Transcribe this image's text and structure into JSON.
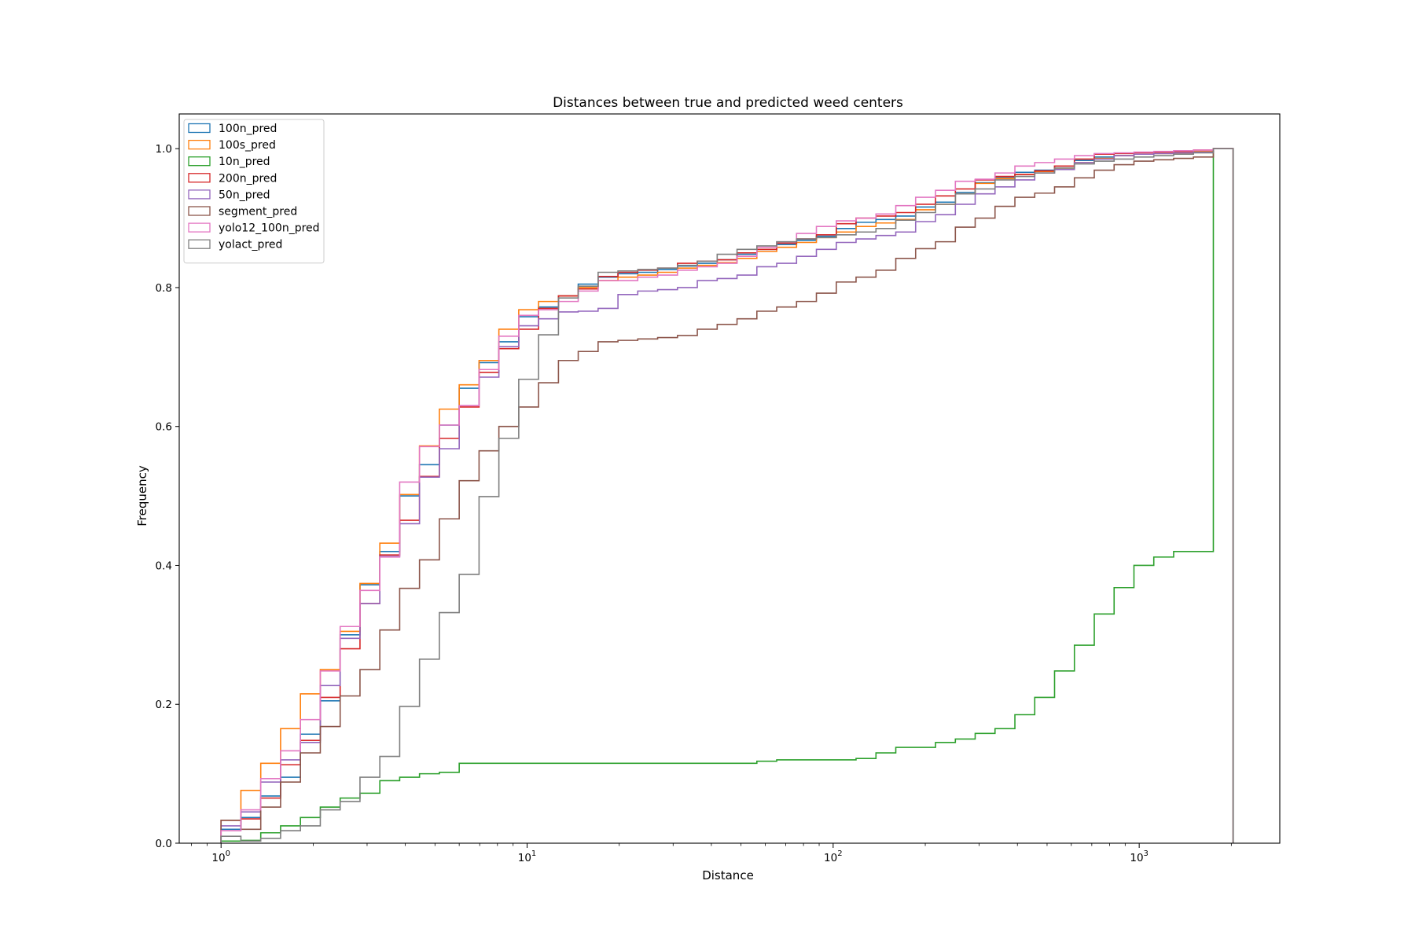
{
  "chart_data": {
    "type": "line",
    "subtype": "cumulative step histogram",
    "title": "Distances between true and predicted weed centers",
    "xlabel": "Distance",
    "ylabel": "Frequency",
    "xscale": "log",
    "xlim": [
      0.73,
      2880
    ],
    "ylim": [
      0,
      1.05
    ],
    "x_ticks": [
      {
        "value": 1,
        "base": "10",
        "exp": "0"
      },
      {
        "value": 10,
        "base": "10",
        "exp": "1"
      },
      {
        "value": 100,
        "base": "10",
        "exp": "2"
      },
      {
        "value": 1000,
        "base": "10",
        "exp": "3"
      }
    ],
    "y_ticks": [
      "0.0",
      "0.2",
      "0.4",
      "0.6",
      "0.8",
      "1.0"
    ],
    "grid": false,
    "legend_position": "upper-left",
    "bin_edges": [
      1.0,
      1.161,
      1.348,
      1.565,
      1.817,
      2.11,
      2.45,
      2.844,
      3.302,
      3.834,
      4.451,
      5.168,
      6.0,
      6.966,
      8.087,
      9.39,
      10.9,
      12.66,
      14.69,
      17.06,
      19.81,
      22.99,
      26.7,
      31.0,
      35.99,
      41.79,
      48.52,
      56.33,
      65.4,
      75.93,
      88.16,
      102.4,
      118.8,
      138.0,
      160.2,
      186.0,
      216.0,
      250.8,
      291.1,
      338.0,
      392.5,
      455.7,
      529.0,
      614.2,
      713.2,
      828.0,
      961.3,
      1116.1,
      1295.9,
      1504.6,
      1747.0,
      2028.3
    ],
    "series": [
      {
        "name": "100n_pred",
        "color": "#1f77b4",
        "values": [
          0.02,
          0.037,
          0.068,
          0.095,
          0.157,
          0.205,
          0.3,
          0.372,
          0.42,
          0.5,
          0.545,
          0.602,
          0.655,
          0.692,
          0.722,
          0.758,
          0.772,
          0.788,
          0.805,
          0.815,
          0.82,
          0.822,
          0.826,
          0.831,
          0.835,
          0.84,
          0.848,
          0.855,
          0.862,
          0.868,
          0.874,
          0.885,
          0.894,
          0.898,
          0.903,
          0.916,
          0.923,
          0.937,
          0.951,
          0.959,
          0.966,
          0.969,
          0.975,
          0.983,
          0.988,
          0.99,
          0.992,
          0.993,
          0.994,
          0.995,
          1.0
        ]
      },
      {
        "name": "100s_pred",
        "color": "#ff7f0e",
        "values": [
          0.033,
          0.076,
          0.115,
          0.165,
          0.215,
          0.25,
          0.305,
          0.374,
          0.432,
          0.502,
          0.572,
          0.625,
          0.66,
          0.695,
          0.74,
          0.768,
          0.78,
          0.788,
          0.8,
          0.81,
          0.815,
          0.818,
          0.822,
          0.828,
          0.832,
          0.836,
          0.842,
          0.852,
          0.858,
          0.865,
          0.872,
          0.88,
          0.888,
          0.893,
          0.898,
          0.912,
          0.92,
          0.935,
          0.95,
          0.957,
          0.963,
          0.967,
          0.972,
          0.98,
          0.986,
          0.99,
          0.992,
          0.993,
          0.994,
          0.996,
          1.0
        ]
      },
      {
        "name": "10n_pred",
        "color": "#2ca02c",
        "values": [
          0.003,
          0.004,
          0.015,
          0.025,
          0.037,
          0.052,
          0.065,
          0.072,
          0.09,
          0.095,
          0.1,
          0.102,
          0.115,
          0.115,
          0.115,
          0.115,
          0.115,
          0.115,
          0.115,
          0.115,
          0.115,
          0.115,
          0.115,
          0.115,
          0.115,
          0.115,
          0.115,
          0.118,
          0.12,
          0.12,
          0.12,
          0.12,
          0.122,
          0.13,
          0.138,
          0.138,
          0.145,
          0.15,
          0.158,
          0.165,
          0.185,
          0.21,
          0.248,
          0.285,
          0.33,
          0.368,
          0.4,
          0.412,
          0.42,
          0.42,
          1.0
        ]
      },
      {
        "name": "200n_pred",
        "color": "#d62728",
        "values": [
          0.033,
          0.035,
          0.065,
          0.113,
          0.148,
          0.21,
          0.28,
          0.345,
          0.415,
          0.465,
          0.528,
          0.583,
          0.628,
          0.678,
          0.712,
          0.74,
          0.77,
          0.788,
          0.798,
          0.816,
          0.822,
          0.825,
          0.828,
          0.835,
          0.838,
          0.84,
          0.85,
          0.855,
          0.864,
          0.87,
          0.876,
          0.892,
          0.9,
          0.903,
          0.908,
          0.92,
          0.932,
          0.942,
          0.955,
          0.96,
          0.963,
          0.968,
          0.975,
          0.985,
          0.992,
          0.993,
          0.994,
          0.995,
          0.996,
          0.998,
          1.0
        ]
      },
      {
        "name": "50n_pred",
        "color": "#9467bd",
        "values": [
          0.025,
          0.045,
          0.088,
          0.12,
          0.145,
          0.227,
          0.295,
          0.345,
          0.413,
          0.46,
          0.527,
          0.568,
          0.63,
          0.671,
          0.715,
          0.745,
          0.755,
          0.765,
          0.766,
          0.77,
          0.79,
          0.795,
          0.797,
          0.8,
          0.81,
          0.813,
          0.818,
          0.83,
          0.835,
          0.845,
          0.855,
          0.865,
          0.87,
          0.875,
          0.88,
          0.895,
          0.905,
          0.92,
          0.935,
          0.945,
          0.955,
          0.965,
          0.97,
          0.98,
          0.985,
          0.99,
          0.992,
          0.993,
          0.994,
          0.995,
          1.0
        ]
      },
      {
        "name": "segment_pred",
        "color": "#8c564b",
        "values": [
          0.033,
          0.02,
          0.052,
          0.088,
          0.13,
          0.168,
          0.212,
          0.25,
          0.307,
          0.367,
          0.408,
          0.467,
          0.522,
          0.565,
          0.6,
          0.628,
          0.663,
          0.695,
          0.708,
          0.722,
          0.724,
          0.726,
          0.728,
          0.731,
          0.74,
          0.747,
          0.755,
          0.766,
          0.772,
          0.78,
          0.792,
          0.808,
          0.815,
          0.825,
          0.842,
          0.856,
          0.866,
          0.887,
          0.9,
          0.917,
          0.93,
          0.936,
          0.945,
          0.958,
          0.969,
          0.977,
          0.982,
          0.984,
          0.986,
          0.988,
          1.0
        ]
      },
      {
        "name": "yolo12_100n_pred",
        "color": "#e377c2",
        "values": [
          0.018,
          0.048,
          0.093,
          0.133,
          0.178,
          0.248,
          0.312,
          0.364,
          0.412,
          0.52,
          0.571,
          0.602,
          0.63,
          0.682,
          0.73,
          0.76,
          0.768,
          0.78,
          0.795,
          0.81,
          0.81,
          0.815,
          0.818,
          0.825,
          0.83,
          0.835,
          0.845,
          0.858,
          0.866,
          0.878,
          0.888,
          0.896,
          0.9,
          0.906,
          0.918,
          0.93,
          0.94,
          0.953,
          0.956,
          0.965,
          0.975,
          0.98,
          0.985,
          0.99,
          0.993,
          0.994,
          0.995,
          0.996,
          0.997,
          0.998,
          1.0
        ]
      },
      {
        "name": "yolact_pred",
        "color": "#7f7f7f",
        "values": [
          0.01,
          0.003,
          0.007,
          0.018,
          0.025,
          0.048,
          0.06,
          0.095,
          0.125,
          0.197,
          0.265,
          0.332,
          0.387,
          0.499,
          0.583,
          0.668,
          0.732,
          0.785,
          0.802,
          0.822,
          0.824,
          0.826,
          0.828,
          0.832,
          0.838,
          0.848,
          0.855,
          0.86,
          0.866,
          0.87,
          0.872,
          0.876,
          0.88,
          0.885,
          0.897,
          0.908,
          0.92,
          0.935,
          0.942,
          0.955,
          0.96,
          0.965,
          0.972,
          0.978,
          0.982,
          0.985,
          0.988,
          0.99,
          0.992,
          0.994,
          1.0
        ]
      }
    ]
  }
}
